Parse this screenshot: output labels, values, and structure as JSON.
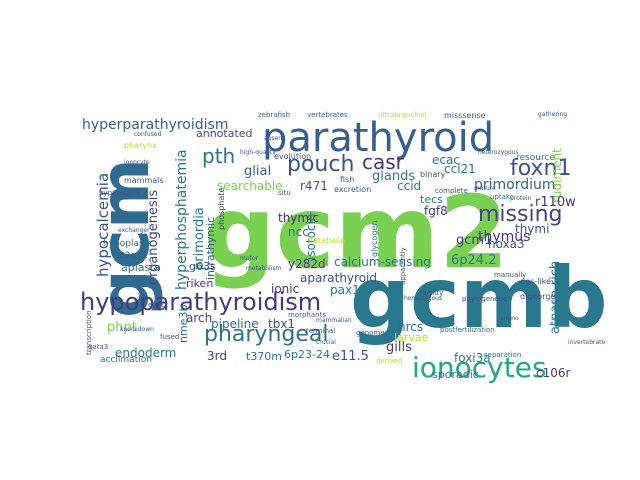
{
  "words": [
    {
      "text": "gcm2",
      "color": "#7ad151"
    },
    {
      "text": "gcmb",
      "color": "#2a788e"
    },
    {
      "text": "gcm",
      "color": "#2f6b8e"
    },
    {
      "text": "parathyroid",
      "color": "#355f8d"
    },
    {
      "text": "hypoparathyroidism",
      "color": "#443983"
    },
    {
      "text": "ionocytes",
      "color": "#22a884"
    },
    {
      "text": "pharyngeal",
      "color": "#2c728e"
    },
    {
      "text": "missing",
      "color": "#414487"
    },
    {
      "text": "foxn1",
      "color": "#3b528b"
    },
    {
      "text": "pouch",
      "color": "#3b528b"
    },
    {
      "text": "casr",
      "color": "#46337f"
    },
    {
      "text": "pth",
      "color": "#2c728e"
    },
    {
      "text": "hyperparathyroidism",
      "color": "#355f8d"
    },
    {
      "text": "hypocalcemia",
      "color": "#3b528b"
    },
    {
      "text": "hyperphosphatemia",
      "color": "#2a788e"
    },
    {
      "text": "organogenesis",
      "color": "#414487"
    },
    {
      "text": "primordia",
      "color": "#2a788e"
    },
    {
      "text": "primordium",
      "color": "#355f8d"
    },
    {
      "text": "thymus",
      "color": "#46337f"
    },
    {
      "text": "glands",
      "color": "#2a788e"
    },
    {
      "text": "glial",
      "color": "#355f8d"
    },
    {
      "text": "annotated",
      "color": "#414487"
    },
    {
      "text": "searchable",
      "color": "#7ad151"
    },
    {
      "text": "ecac",
      "color": "#2c728e"
    },
    {
      "text": "ccl21",
      "color": "#2c728e"
    },
    {
      "text": "ccid",
      "color": "#2a788e"
    },
    {
      "text": "r471",
      "color": "#3b528b"
    },
    {
      "text": "tecs",
      "color": "#2a788e"
    },
    {
      "text": "fgf8",
      "color": "#46337f"
    },
    {
      "text": "thymic",
      "color": "#472d7b"
    },
    {
      "text": "ncc",
      "color": "#2a788e"
    },
    {
      "text": "isotocin",
      "color": "#2c728e"
    },
    {
      "text": "gcm1",
      "color": "#414487"
    },
    {
      "text": "hoxa3",
      "color": "#3b528b"
    },
    {
      "text": "y282d",
      "color": "#46337f"
    },
    {
      "text": "calcium-sensing",
      "color": "#2c728e"
    },
    {
      "text": "6p24.2",
      "color": "#2a788e"
    },
    {
      "text": "aparathyroid",
      "color": "#3b528b"
    },
    {
      "text": "intrathymic",
      "color": "#355f8d"
    },
    {
      "text": "g63s",
      "color": "#3b528b"
    },
    {
      "text": "riken",
      "color": "#46337f"
    },
    {
      "text": "ionic",
      "color": "#46337f"
    },
    {
      "text": "pax1",
      "color": "#2a788e"
    },
    {
      "text": "arch",
      "color": "#414487"
    },
    {
      "text": "pipeline",
      "color": "#2c728e"
    },
    {
      "text": "tbx1",
      "color": "#3b528b"
    },
    {
      "text": "phpt",
      "color": "#7ad151"
    },
    {
      "text": "endoderm",
      "color": "#2c728e"
    },
    {
      "text": "3rd",
      "color": "#414487"
    },
    {
      "text": "t370m",
      "color": "#2c728e"
    },
    {
      "text": "6p23-24",
      "color": "#2c728e"
    },
    {
      "text": "e11.5",
      "color": "#3b528b"
    },
    {
      "text": "gills",
      "color": "#46337f"
    },
    {
      "text": "hrcs",
      "color": "#2c728e"
    },
    {
      "text": "larvae",
      "color": "#b5de2b"
    },
    {
      "text": "foxi3a",
      "color": "#2a788e"
    },
    {
      "text": "sporadic",
      "color": "#2c728e"
    },
    {
      "text": "c106r",
      "color": "#46337f"
    },
    {
      "text": "atpase-rich",
      "color": "#2a788e"
    },
    {
      "text": "rudiment",
      "color": "#7ad151"
    },
    {
      "text": "r110w",
      "color": "#46337f"
    },
    {
      "text": "thymi",
      "color": "#3b528b"
    },
    {
      "text": "nme3b",
      "color": "#2c728e"
    },
    {
      "text": "aplasia",
      "color": "#2c728e"
    },
    {
      "text": "hypoplasia",
      "color": "#2c728e"
    },
    {
      "text": "22q11",
      "color": "#355f8d"
    },
    {
      "text": "acclimation",
      "color": "#2c728e"
    },
    {
      "text": "resource",
      "color": "#2c728e"
    },
    {
      "text": "zebrafish",
      "color": "#355f8d"
    },
    {
      "text": "vertebrates",
      "color": "#355f8d"
    },
    {
      "text": "evolution",
      "color": "#3b528b"
    },
    {
      "text": "excretion",
      "color": "#355f8d"
    },
    {
      "text": "fish",
      "color": "#355f8d"
    },
    {
      "text": "binary",
      "color": "#3b528b"
    },
    {
      "text": "misssense",
      "color": "#355f8d"
    },
    {
      "text": "phosphate",
      "color": "#414487"
    },
    {
      "text": "database",
      "color": "#b5de2b"
    },
    {
      "text": "morphants",
      "color": "#355f8d"
    },
    {
      "text": "terminal",
      "color": "#3b528b"
    },
    {
      "text": "glycogen",
      "color": "#2a788e"
    },
    {
      "text": "ultrabranchial",
      "color": "#b5de2b"
    },
    {
      "text": "manually",
      "color": "#3b528b"
    },
    {
      "text": "digeorge",
      "color": "#3b528b"
    },
    {
      "text": "dgs-like",
      "color": "#3b528b"
    },
    {
      "text": "separation",
      "color": "#2c728e"
    },
    {
      "text": "uptake",
      "color": "#2c728e"
    },
    {
      "text": "complete",
      "color": "#3b528b"
    },
    {
      "text": "transcription",
      "color": "#3b528b"
    },
    {
      "text": "apparently",
      "color": "#3b528b"
    },
    {
      "text": "facility",
      "color": "#3b528b"
    },
    {
      "text": "phylogenetic",
      "color": "#3b528b"
    },
    {
      "text": "postfertilization",
      "color": "#2c728e"
    },
    {
      "text": "pharynx",
      "color": "#b5de2b"
    },
    {
      "text": "mammals",
      "color": "#3b528b"
    },
    {
      "text": "hyperplasia",
      "color": "#3b528b"
    },
    {
      "text": "exchanger",
      "color": "#3b528b"
    },
    {
      "text": "ionocyte",
      "color": "#3b528b"
    },
    {
      "text": "high-quality",
      "color": "#3b528b"
    },
    {
      "text": "confused",
      "color": "#3b528b"
    },
    {
      "text": "absent",
      "color": "#3b528b"
    },
    {
      "text": "situ",
      "color": "#3b528b"
    },
    {
      "text": "gata3",
      "color": "#3b528b"
    },
    {
      "text": "fused",
      "color": "#3b528b"
    },
    {
      "text": "effect",
      "color": "#3b528b"
    },
    {
      "text": "knockdown",
      "color": "#3b528b"
    },
    {
      "text": "genome",
      "color": "#3b528b"
    },
    {
      "text": "mammalian",
      "color": "#3b528b"
    },
    {
      "text": "derived",
      "color": "#b5de2b"
    },
    {
      "text": "heterozygous",
      "color": "#3b528b"
    },
    {
      "text": "gathering",
      "color": "#3b528b"
    },
    {
      "text": "protein",
      "color": "#3b528b"
    },
    {
      "text": "invertebrate",
      "color": "#3b528b"
    },
    {
      "text": "amino",
      "color": "#3b528b"
    },
    {
      "text": "homozygous",
      "color": "#3b528b"
    },
    {
      "text": "crucial",
      "color": "#3b528b"
    },
    {
      "text": "motor",
      "color": "#3b528b"
    },
    {
      "text": "metabolism",
      "color": "#3b528b"
    },
    {
      "text": "mature",
      "color": "#3b528b"
    }
  ]
}
